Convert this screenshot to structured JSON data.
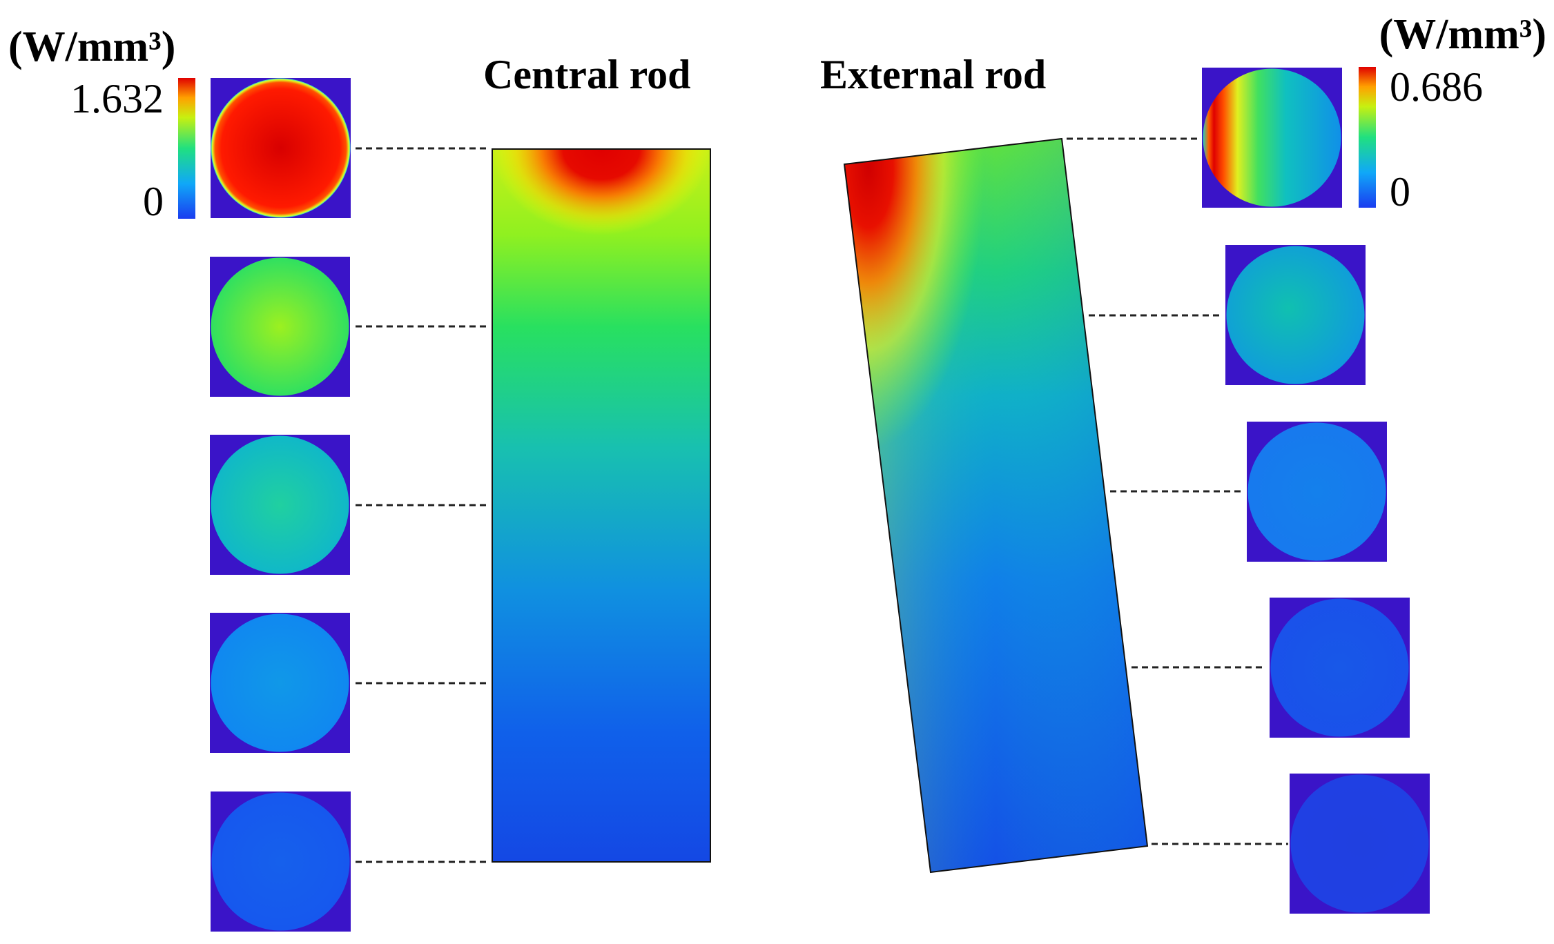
{
  "units": {
    "left": "(W/mm³)",
    "right": "(W/mm³)"
  },
  "colorbar_left": {
    "max_label": "1.632",
    "min_label": "0"
  },
  "colorbar_right": {
    "max_label": "0.686",
    "min_label": "0"
  },
  "titles": {
    "central": "Central rod",
    "external": "External rod"
  },
  "colors": {
    "background_square": "#3a14c8",
    "colormap": [
      "#2a10c8",
      "#0a50f0",
      "#0aa0f8",
      "#10e0a0",
      "#30ff30",
      "#c0ff10",
      "#ffd000",
      "#ff6000",
      "#e60000"
    ]
  },
  "central_sections": [
    1.0,
    0.55,
    0.42,
    0.3,
    0.18
  ],
  "external_sections": [
    0.9,
    0.4,
    0.27,
    0.15,
    0.06
  ]
}
